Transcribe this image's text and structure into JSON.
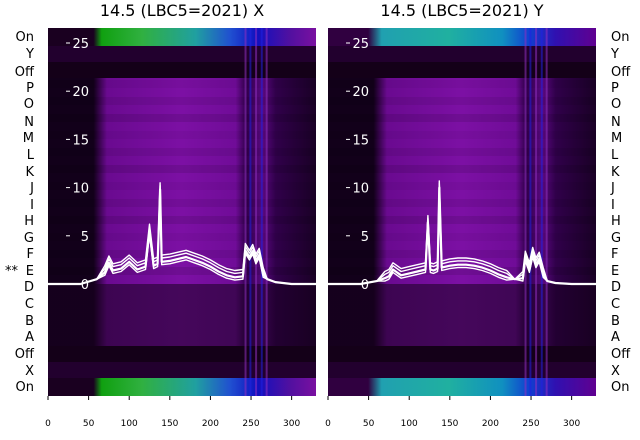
{
  "chart_data": [
    {
      "type": "heatmap",
      "title": "14.5 (LBC5=2021) X",
      "xlabel": "",
      "ylabel": "",
      "xlim": [
        0,
        330
      ],
      "ylim": [
        -12,
        27
      ],
      "xticks": [
        0,
        50,
        100,
        150,
        200,
        250,
        300
      ],
      "yticks": [
        0,
        5,
        10,
        15,
        20,
        25
      ],
      "row_labels": [
        "On",
        "Y",
        "Off",
        "P",
        "O",
        "N",
        "M",
        "L",
        "K",
        "J",
        "I",
        "H",
        "G",
        "F",
        "E",
        "D",
        "C",
        "B",
        "A",
        "Off",
        "X",
        "On"
      ],
      "marked_row": "E",
      "marker_text": "**",
      "line_overlay": {
        "x": [
          0,
          40,
          60,
          70,
          75,
          80,
          90,
          100,
          110,
          120,
          125,
          130,
          135,
          138,
          140,
          150,
          160,
          170,
          180,
          190,
          200,
          210,
          220,
          230,
          240,
          243,
          248,
          252,
          256,
          260,
          265,
          270,
          280,
          300,
          330
        ],
        "y": [
          0,
          0,
          0.5,
          1.2,
          2.2,
          1.4,
          1.6,
          2.3,
          1.5,
          1.8,
          5.5,
          1.9,
          2.1,
          9.8,
          2.3,
          2.4,
          2.6,
          2.8,
          2.5,
          2.2,
          1.8,
          1.3,
          0.9,
          0.7,
          0.8,
          3.5,
          2.8,
          3.4,
          2.4,
          3.0,
          1.0,
          0.5,
          0.2,
          0,
          0
        ]
      }
    },
    {
      "type": "heatmap",
      "title": "14.5 (LBC5=2021) Y",
      "xlabel": "",
      "ylabel": "",
      "xlim": [
        0,
        330
      ],
      "ylim": [
        -12,
        27
      ],
      "xticks": [
        0,
        50,
        100,
        150,
        200,
        250,
        300
      ],
      "yticks": [
        0,
        5,
        10,
        15,
        20,
        25
      ],
      "row_labels": [
        "On",
        "Y",
        "Off",
        "P",
        "O",
        "N",
        "M",
        "L",
        "K",
        "J",
        "I",
        "H",
        "G",
        "F",
        "E",
        "D",
        "C",
        "B",
        "A",
        "Off",
        "X",
        "On"
      ],
      "line_overlay": {
        "x": [
          0,
          40,
          60,
          70,
          75,
          80,
          90,
          100,
          110,
          120,
          123,
          126,
          130,
          135,
          137,
          140,
          150,
          160,
          170,
          180,
          190,
          200,
          210,
          220,
          230,
          240,
          243,
          248,
          252,
          256,
          260,
          265,
          270,
          280,
          300,
          330
        ],
        "y": [
          0,
          0,
          0.3,
          0.6,
          0.8,
          1.5,
          0.9,
          1.1,
          1.3,
          1.5,
          6.4,
          1.5,
          1.4,
          1.6,
          10.0,
          1.7,
          1.9,
          2.0,
          2.0,
          1.9,
          1.7,
          1.4,
          1.0,
          0.7,
          0.5,
          0.6,
          2.7,
          1.5,
          3.1,
          2.0,
          2.6,
          1.0,
          0.3,
          0.1,
          0,
          0
        ]
      }
    }
  ],
  "colors": {
    "off_band": "#140018",
    "purple": "#7a0aa0",
    "dark_purple": "#2a0038",
    "green": "#20b030",
    "teal": "#20a0a0",
    "blue": "#1020d0",
    "line": "#ffffff"
  }
}
